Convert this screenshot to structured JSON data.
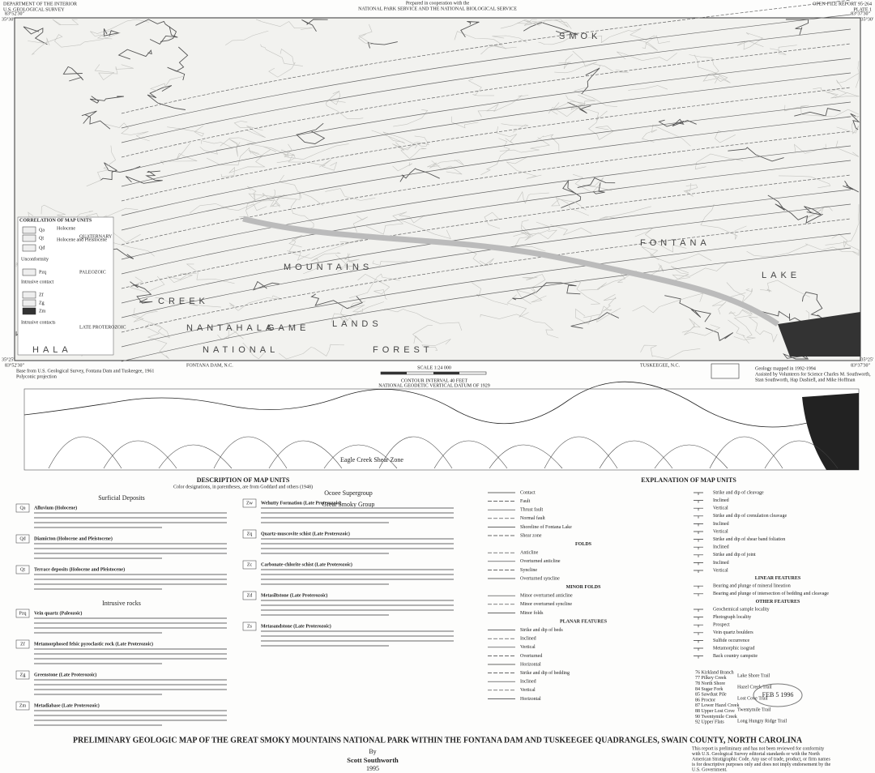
{
  "header": {
    "agency": [
      "DEPARTMENT OF THE INTERIOR",
      "U.S. GEOLOGICAL SURVEY"
    ],
    "cooperation": [
      "Prepared in cooperation with the",
      "NATIONAL PARK SERVICE AND THE NATIONAL BIOLOGICAL SERVICE"
    ],
    "report": [
      "OPEN-FILE REPORT 95-264",
      "PLATE 1"
    ]
  },
  "map": {
    "corners": {
      "top_left_lon": "83°52'30\"",
      "top_left_lat": "35°30'",
      "top_right_lon": "83°37'30\"",
      "top_right_lat": "35°30'",
      "bottom_left_lat": "35°25'",
      "bottom_left_lon": "83°52'30\"",
      "bottom_right_lat": "35°25'",
      "bottom_right_lon": "83°37'30\""
    },
    "labels": [
      "SMOK",
      "CREEK",
      "MOUNTAINS",
      "NANTAHALA",
      "GAME",
      "LANDS",
      "HALA",
      "NATIONAL",
      "FOREST",
      "FONTANA",
      "LAKE"
    ],
    "quad_left": "FONTANA DAM, N.C.",
    "quad_right": "TUSKEEGEE, N.C.",
    "base_note": [
      "Base from U.S. Geological Survey, Fontana Dam and Tuskeegee, 1961",
      "Polyconic projection"
    ],
    "geology_note": [
      "Geology mapped in 1992-1994",
      "Assisted by Volunteers for Science Charles M. Southworth,",
      "Stan Southworth, Hap Dashiell, and Mike Hoffman"
    ],
    "scale": "SCALE 1:24 000",
    "contour": [
      "CONTOUR INTERVAL 40 FEET",
      "NATIONAL GEODETIC VERTICAL DATUM OF 1929"
    ]
  },
  "correlation": {
    "title": "CORRELATION OF MAP UNITS",
    "units": [
      "Qa",
      "Qt",
      "Qd",
      "Pzq",
      "Zf",
      "Zg",
      "Zm"
    ],
    "labels": [
      "Holocene",
      "Holocene and Pleistocene",
      "QUATERNARY",
      "Unconformity",
      "Intrusive contact",
      "PALEOZOIC",
      "Intrusive contacts",
      "LATE PROTEROZOIC"
    ]
  },
  "cross_section": {
    "label": "Eagle Creek Shear Zone"
  },
  "description": {
    "title": "DESCRIPTION OF MAP UNITS",
    "note": "Color designations, in parentheses, are from Goddard and others (1948)",
    "left": [
      {
        "heading": "Surficial Deposits",
        "units": [
          {
            "code": "Qa",
            "name": "Alluvium (Holocene)"
          },
          {
            "code": "Qd",
            "name": "Diamicton (Holocene and Pleistocene)"
          },
          {
            "code": "Qt",
            "name": "Terrace deposits (Holocene and Pleistocene)"
          }
        ]
      },
      {
        "heading": "Intrusive rocks",
        "units": [
          {
            "code": "Pzq",
            "name": "Vein quartz (Paleozoic)"
          },
          {
            "code": "Zf",
            "name": "Metamorphosed felsic pyroclastic rock (Late Proterozoic)"
          },
          {
            "code": "Zg",
            "name": "Greenstone (Late Proterozoic)"
          },
          {
            "code": "Zm",
            "name": "Metadiabase (Late Proterozoic)"
          }
        ]
      }
    ],
    "right": [
      {
        "heading": "Ocoee Supergroup",
        "units": [
          {
            "code": "Zw",
            "name": "Wehutty Formation (Late Proterozoic)"
          },
          {
            "code": "Zq",
            "name": "Quartz-muscovite schist (Late Proterozoic)"
          },
          {
            "code": "Zc",
            "name": "Carbonate-chlorite schist (Late Proterozoic)"
          },
          {
            "code": "Zd",
            "name": "Metasiltstone (Late Proterozoic)"
          },
          {
            "code": "Zs",
            "name": "Metasandstone (Late Proterozoic)"
          }
        ]
      }
    ],
    "group": "Great Smoky Group"
  },
  "explanation": {
    "title": "EXPLANATION OF MAP UNITS",
    "left": [
      "Contact",
      "Fault",
      "Thrust fault",
      "Normal fault",
      "Shoreline of Fontana Lake",
      "Shear zone",
      "FOLDS",
      "Anticline",
      "Overturned anticline",
      "Syncline",
      "Overturned syncline",
      "MINOR FOLDS",
      "Minor overturned anticline",
      "Minor overturned syncline",
      "Minor folds",
      "PLANAR FEATURES",
      "Strike and dip of beds",
      "Inclined",
      "Vertical",
      "Overturned",
      "Horizontal",
      "Strike and dip of bedding",
      "Inclined",
      "Vertical",
      "Horizontal"
    ],
    "right": [
      "Strike and dip of cleavage",
      "Inclined",
      "Vertical",
      "Strike and dip of crenulation cleavage",
      "Inclined",
      "Vertical",
      "Strike and dip of shear band foliation",
      "Inclined",
      "Strike and dip of joint",
      "Inclined",
      "Vertical",
      "LINEAR FEATURES",
      "Bearing and plunge of mineral lineation",
      "Bearing and plunge of intersection of bedding and cleavage",
      "OTHER FEATURES",
      "Geochemical sample locality",
      "Photograph locality",
      "Prospect",
      "Vein quartz boulders",
      "Sulfide occurrence",
      "Metamorphic isograd",
      "Back country campsite"
    ],
    "campsites": [
      "76 Kirkland Branch",
      "77 Pilkey Creek",
      "78 North Shore",
      "84 Sugar Fork",
      "85 Sawdust Pile",
      "86 Proctor",
      "87 Lower Hazel Creek",
      "88 Upper Lost Cove",
      "90 Twentymile Creek",
      "92 Upper Flats"
    ],
    "trails": [
      "Lake Shore Trail",
      "Hazel Creek Trail",
      "Lost Cove Trail",
      "Twentymile Trail",
      "Long Hungry Ridge Trail"
    ]
  },
  "footer": {
    "title": "PRELIMINARY GEOLOGIC MAP OF THE GREAT SMOKY MOUNTAINS NATIONAL PARK WITHIN THE FONTANA DAM AND TUSKEEGEE QUADRANGLES, SWAIN COUNTY, NORTH CAROLINA",
    "by": "By",
    "author": "Scott Southworth",
    "year": "1995",
    "disclaimer": [
      "This report is preliminary and has not been reviewed for conformity",
      "with U.S. Geological Survey editorial standards or with the North",
      "American Stratigraphic Code. Any use of trade, product, or firm names",
      "is for descriptive purposes only and does not imply endorsement by the",
      "U.S. Government."
    ],
    "stamp": "FEB 5 1996"
  }
}
